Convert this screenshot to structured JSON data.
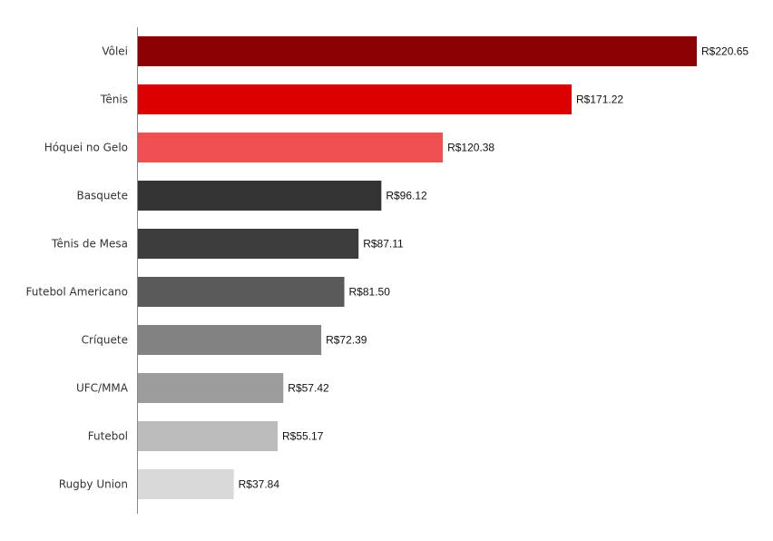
{
  "chart_data": {
    "type": "bar",
    "orientation": "horizontal",
    "title": "",
    "xlabel": "",
    "ylabel": "",
    "currency_prefix": "R$",
    "categories": [
      "Vôlei",
      "Tênis",
      "Hóquei no Gelo",
      "Basquete",
      "Tênis de Mesa",
      "Futebol Americano",
      "Críquete",
      "UFC/MMA",
      "Futebol",
      "Rugby Union"
    ],
    "values": [
      220.65,
      171.22,
      120.38,
      96.12,
      87.11,
      81.5,
      72.39,
      57.42,
      55.17,
      37.84
    ],
    "value_labels": [
      "R$220.65",
      "R$171.22",
      "R$120.38",
      "R$96.12",
      "R$87.11",
      "R$81.50",
      "R$72.39",
      "R$57.42",
      "R$55.17",
      "R$37.84"
    ],
    "colors": [
      "#8b0000",
      "#dd0000",
      "#f05052",
      "#333333",
      "#3c3c3c",
      "#5a5a5a",
      "#828282",
      "#9c9c9c",
      "#bcbcbc",
      "#d9d9d9"
    ],
    "xlim": [
      0,
      220.65
    ],
    "grid": false,
    "legend": "none"
  }
}
